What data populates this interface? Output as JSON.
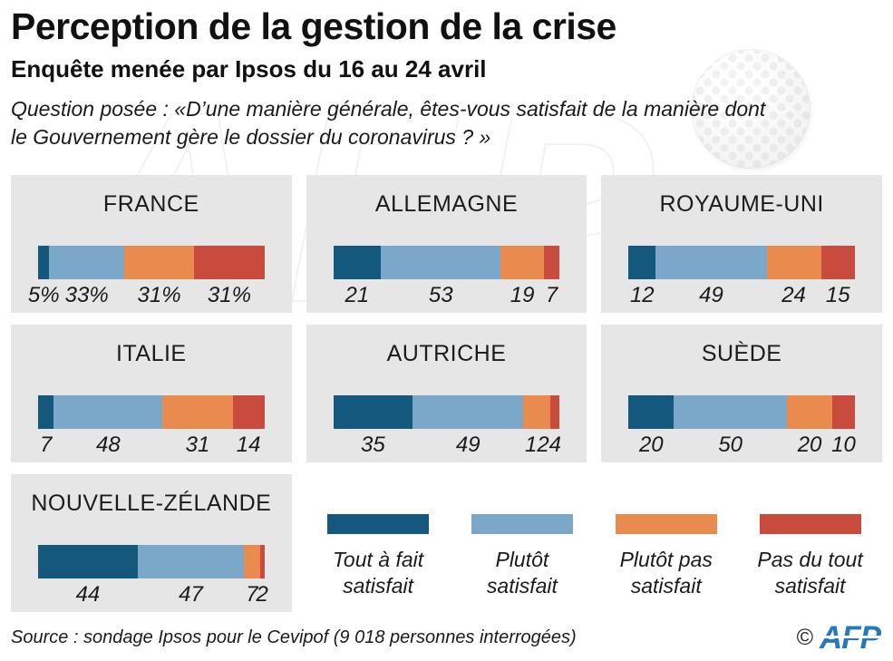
{
  "header": {
    "title": "Perception de la gestion de la crise",
    "subtitle": "Enquête menée par Ipsos du 16 au 24 avril",
    "question": "Question posée : «D’une manière générale, êtes-vous satisfait de la manière dont\nle Gouvernement gère le dossier du coronavirus ? »"
  },
  "chart_data": {
    "type": "bar",
    "orientation": "horizontal",
    "stacked": true,
    "unit": "percent",
    "xlim": [
      0,
      100
    ],
    "series_names": [
      "Tout à fait satisfait",
      "Plutôt satisfait",
      "Plutôt pas satisfait",
      "Pas du tout satisfait"
    ],
    "series_keys": [
      "tout-a-fait-satisfait",
      "plutot-satisfait",
      "plutot-pas-satisfait",
      "pas-du-tout-satisfait"
    ],
    "colors": [
      "#15587e",
      "#7ba7c8",
      "#e98b4e",
      "#c94b3d"
    ],
    "countries": [
      {
        "name": "FRANCE",
        "values": [
          5,
          33,
          31,
          31
        ],
        "labels": [
          "5%",
          "33%",
          "31%",
          "31%"
        ]
      },
      {
        "name": "ALLEMAGNE",
        "values": [
          21,
          53,
          19,
          7
        ],
        "labels": [
          "21",
          "53",
          "19",
          "7"
        ]
      },
      {
        "name": "ROYAUME-UNI",
        "values": [
          12,
          49,
          24,
          15
        ],
        "labels": [
          "12",
          "49",
          "24",
          "15"
        ]
      },
      {
        "name": "ITALIE",
        "values": [
          7,
          48,
          31,
          14
        ],
        "labels": [
          "7",
          "48",
          "31",
          "14"
        ]
      },
      {
        "name": "AUTRICHE",
        "values": [
          35,
          49,
          12,
          4
        ],
        "labels": [
          "35",
          "49",
          "12",
          "4"
        ]
      },
      {
        "name": "SUÈDE",
        "values": [
          20,
          50,
          20,
          10
        ],
        "labels": [
          "20",
          "50",
          "20",
          "10"
        ]
      },
      {
        "name": "NOUVELLE-ZÉLANDE",
        "values": [
          44,
          47,
          7,
          2
        ],
        "labels": [
          "44",
          "47",
          "7",
          "2"
        ]
      }
    ]
  },
  "legend": [
    {
      "label": "Tout à fait\nsatisfait",
      "color": "#15587e"
    },
    {
      "label": "Plutôt\nsatisfait",
      "color": "#7ba7c8"
    },
    {
      "label": "Plutôt pas\nsatisfait",
      "color": "#e98b4e"
    },
    {
      "label": "Pas du tout\nsatisfait",
      "color": "#c94b3d"
    }
  ],
  "footer": {
    "source": "Source : sondage Ipsos pour le Cevipof (9 018 personnes interrogées)",
    "copyright": "©",
    "logo_text": "AFP"
  },
  "watermark": {
    "text": "AFP"
  }
}
